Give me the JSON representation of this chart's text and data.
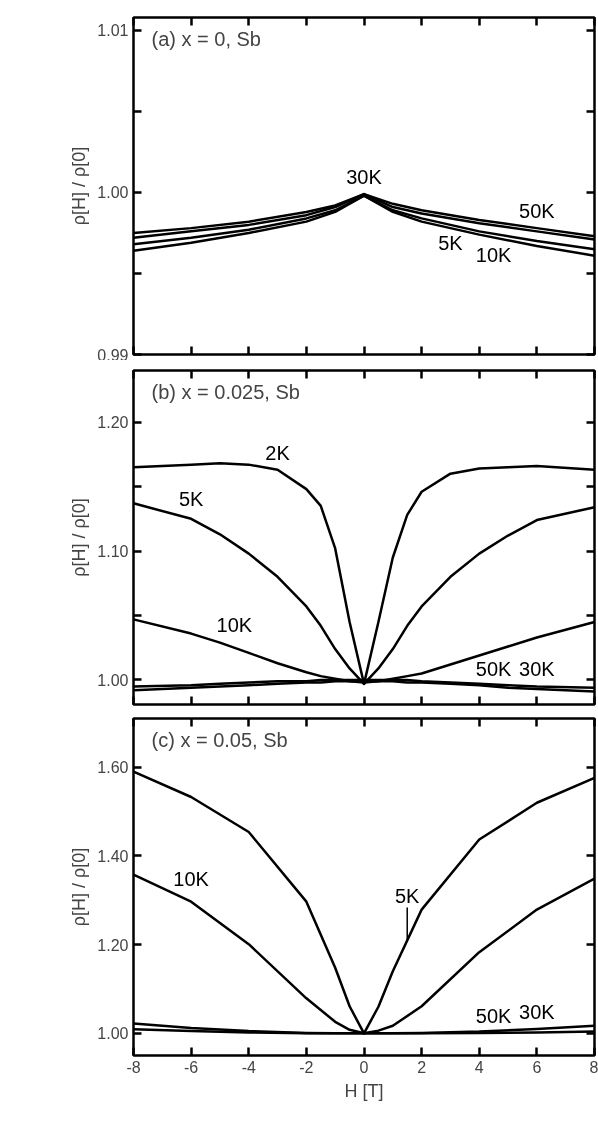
{
  "chart_data": [
    {
      "type": "line",
      "title": "(a) x = 0, Sb",
      "ylabel": "ρ[H] / ρ[0]",
      "tick_labels": "y",
      "x": [
        -8,
        -6,
        -4,
        -2,
        -1,
        0,
        1,
        2,
        4,
        6,
        8
      ],
      "series": [
        {
          "name": "50K",
          "color": "#000000",
          "values": [
            0.9975,
            0.9978,
            0.9982,
            0.9988,
            0.9992,
            0.9999,
            0.9993,
            0.9989,
            0.9983,
            0.9978,
            0.9973
          ]
        },
        {
          "name": "30K",
          "color": "#000000",
          "values": [
            0.9972,
            0.9976,
            0.998,
            0.9986,
            0.9991,
            0.9999,
            0.9991,
            0.9987,
            0.9981,
            0.9976,
            0.9971
          ]
        },
        {
          "name": "10K",
          "color": "#000000",
          "values": [
            0.9968,
            0.9972,
            0.9977,
            0.9984,
            0.9989,
            0.9998,
            0.9989,
            0.9984,
            0.9976,
            0.997,
            0.9965
          ]
        },
        {
          "name": "5K",
          "color": "#000000",
          "values": [
            0.9964,
            0.9969,
            0.9975,
            0.9982,
            0.9988,
            0.9998,
            0.9988,
            0.9982,
            0.9974,
            0.9967,
            0.9961
          ]
        }
      ],
      "xlim": [
        -8,
        8
      ],
      "ylim": [
        0.99,
        1.0108
      ],
      "xticks": [
        -8,
        -6,
        -4,
        -2,
        0,
        2,
        4,
        6,
        8
      ],
      "yticks": [
        {
          "value": 0.99,
          "label": "0.99"
        },
        {
          "value": 0.995,
          "label": null
        },
        {
          "value": 1.0,
          "label": "1.00"
        },
        {
          "value": 1.005,
          "label": null
        },
        {
          "value": 1.01,
          "label": "1.01"
        }
      ]
    },
    {
      "type": "line",
      "title": "(b) x = 0.025, Sb",
      "ylabel": "ρ[H] / ρ[0]",
      "tick_labels": "y",
      "x": [
        -8,
        -6,
        -5,
        -4,
        -3,
        -2,
        -1.5,
        -1,
        -0.5,
        0,
        0.5,
        1,
        1.5,
        2,
        3,
        4,
        5,
        6,
        8
      ],
      "series": [
        {
          "name": "2K",
          "color": "#000000",
          "values": [
            1.165,
            1.167,
            1.168,
            1.167,
            1.163,
            1.148,
            1.135,
            1.102,
            1.045,
            0.997,
            1.045,
            1.095,
            1.128,
            1.146,
            1.16,
            1.164,
            1.165,
            1.166,
            1.163
          ]
        },
        {
          "name": "5K",
          "color": "#000000",
          "values": [
            1.137,
            1.125,
            1.113,
            1.098,
            1.08,
            1.057,
            1.042,
            1.024,
            1.009,
            0.997,
            1.009,
            1.024,
            1.042,
            1.057,
            1.08,
            1.098,
            1.112,
            1.124,
            1.134
          ]
        },
        {
          "name": "10K",
          "color": "#000000",
          "values": [
            1.047,
            1.036,
            1.029,
            1.021,
            1.013,
            1.006,
            1.003,
            1.001,
            0.999,
            0.998,
            0.999,
            1.001,
            1.003,
            1.005,
            1.012,
            1.019,
            1.026,
            1.033,
            1.045
          ]
        },
        {
          "name": "30K",
          "color": "#000000",
          "values": [
            0.995,
            0.996,
            0.997,
            0.998,
            0.999,
            0.999,
            1.0,
            1.0,
            1.0,
            1.0,
            1.0,
            1.0,
            1.0,
            0.999,
            0.998,
            0.997,
            0.996,
            0.995,
            0.994
          ]
        },
        {
          "name": "50K",
          "color": "#000000",
          "values": [
            0.992,
            0.994,
            0.995,
            0.996,
            0.997,
            0.998,
            0.998,
            0.999,
            0.999,
            0.999,
            0.999,
            0.999,
            0.998,
            0.998,
            0.997,
            0.996,
            0.994,
            0.993,
            0.991
          ]
        }
      ],
      "xlim": [
        -8,
        8
      ],
      "ylim": [
        0.981,
        1.24
      ],
      "xticks": [
        -8,
        -6,
        -4,
        -2,
        0,
        2,
        4,
        6,
        8
      ],
      "yticks": [
        {
          "value": 1.0,
          "label": "1.00"
        },
        {
          "value": 1.05,
          "label": null
        },
        {
          "value": 1.1,
          "label": "1.10"
        },
        {
          "value": 1.15,
          "label": null
        },
        {
          "value": 1.2,
          "label": "1.20"
        }
      ]
    },
    {
      "type": "line",
      "title": "(c) x = 0.05, Sb",
      "ylabel": "ρ[H] / ρ[0]",
      "xlabel": "H [T]",
      "x": [
        -8,
        -6,
        -4,
        -2,
        -1,
        -0.5,
        0,
        0.5,
        1,
        2,
        4,
        6,
        8
      ],
      "series": [
        {
          "name": "5K",
          "color": "#000000",
          "values": [
            1.59,
            1.533,
            1.454,
            1.297,
            1.148,
            1.061,
            1.0,
            1.06,
            1.14,
            1.279,
            1.437,
            1.52,
            1.576
          ]
        },
        {
          "name": "10K",
          "color": "#000000",
          "values": [
            1.358,
            1.297,
            1.201,
            1.079,
            1.026,
            1.008,
            1.0,
            1.006,
            1.017,
            1.061,
            1.183,
            1.279,
            1.349
          ]
        },
        {
          "name": "30K",
          "color": "#000000",
          "values": [
            1.022,
            1.012,
            1.005,
            1.001,
            1.0,
            1.0,
            1.0,
            1.0,
            1.0,
            1.001,
            1.004,
            1.01,
            1.017
          ]
        },
        {
          "name": "50K",
          "color": "#000000",
          "values": [
            1.009,
            1.005,
            1.002,
            1.0,
            1.0,
            1.0,
            1.0,
            1.0,
            1.0,
            1.0,
            1.001,
            1.002,
            1.004
          ]
        }
      ],
      "xlim": [
        -8,
        8
      ],
      "ylim": [
        0.95,
        1.71
      ],
      "xticks": [
        -8,
        -6,
        -4,
        -2,
        0,
        2,
        4,
        6,
        8
      ],
      "yticks": [
        {
          "value": 1.0,
          "label": "1.00"
        },
        {
          "value": 1.2,
          "label": "1.20"
        },
        {
          "value": 1.4,
          "label": "1.40"
        },
        {
          "value": 1.6,
          "label": "1.60"
        }
      ]
    }
  ]
}
